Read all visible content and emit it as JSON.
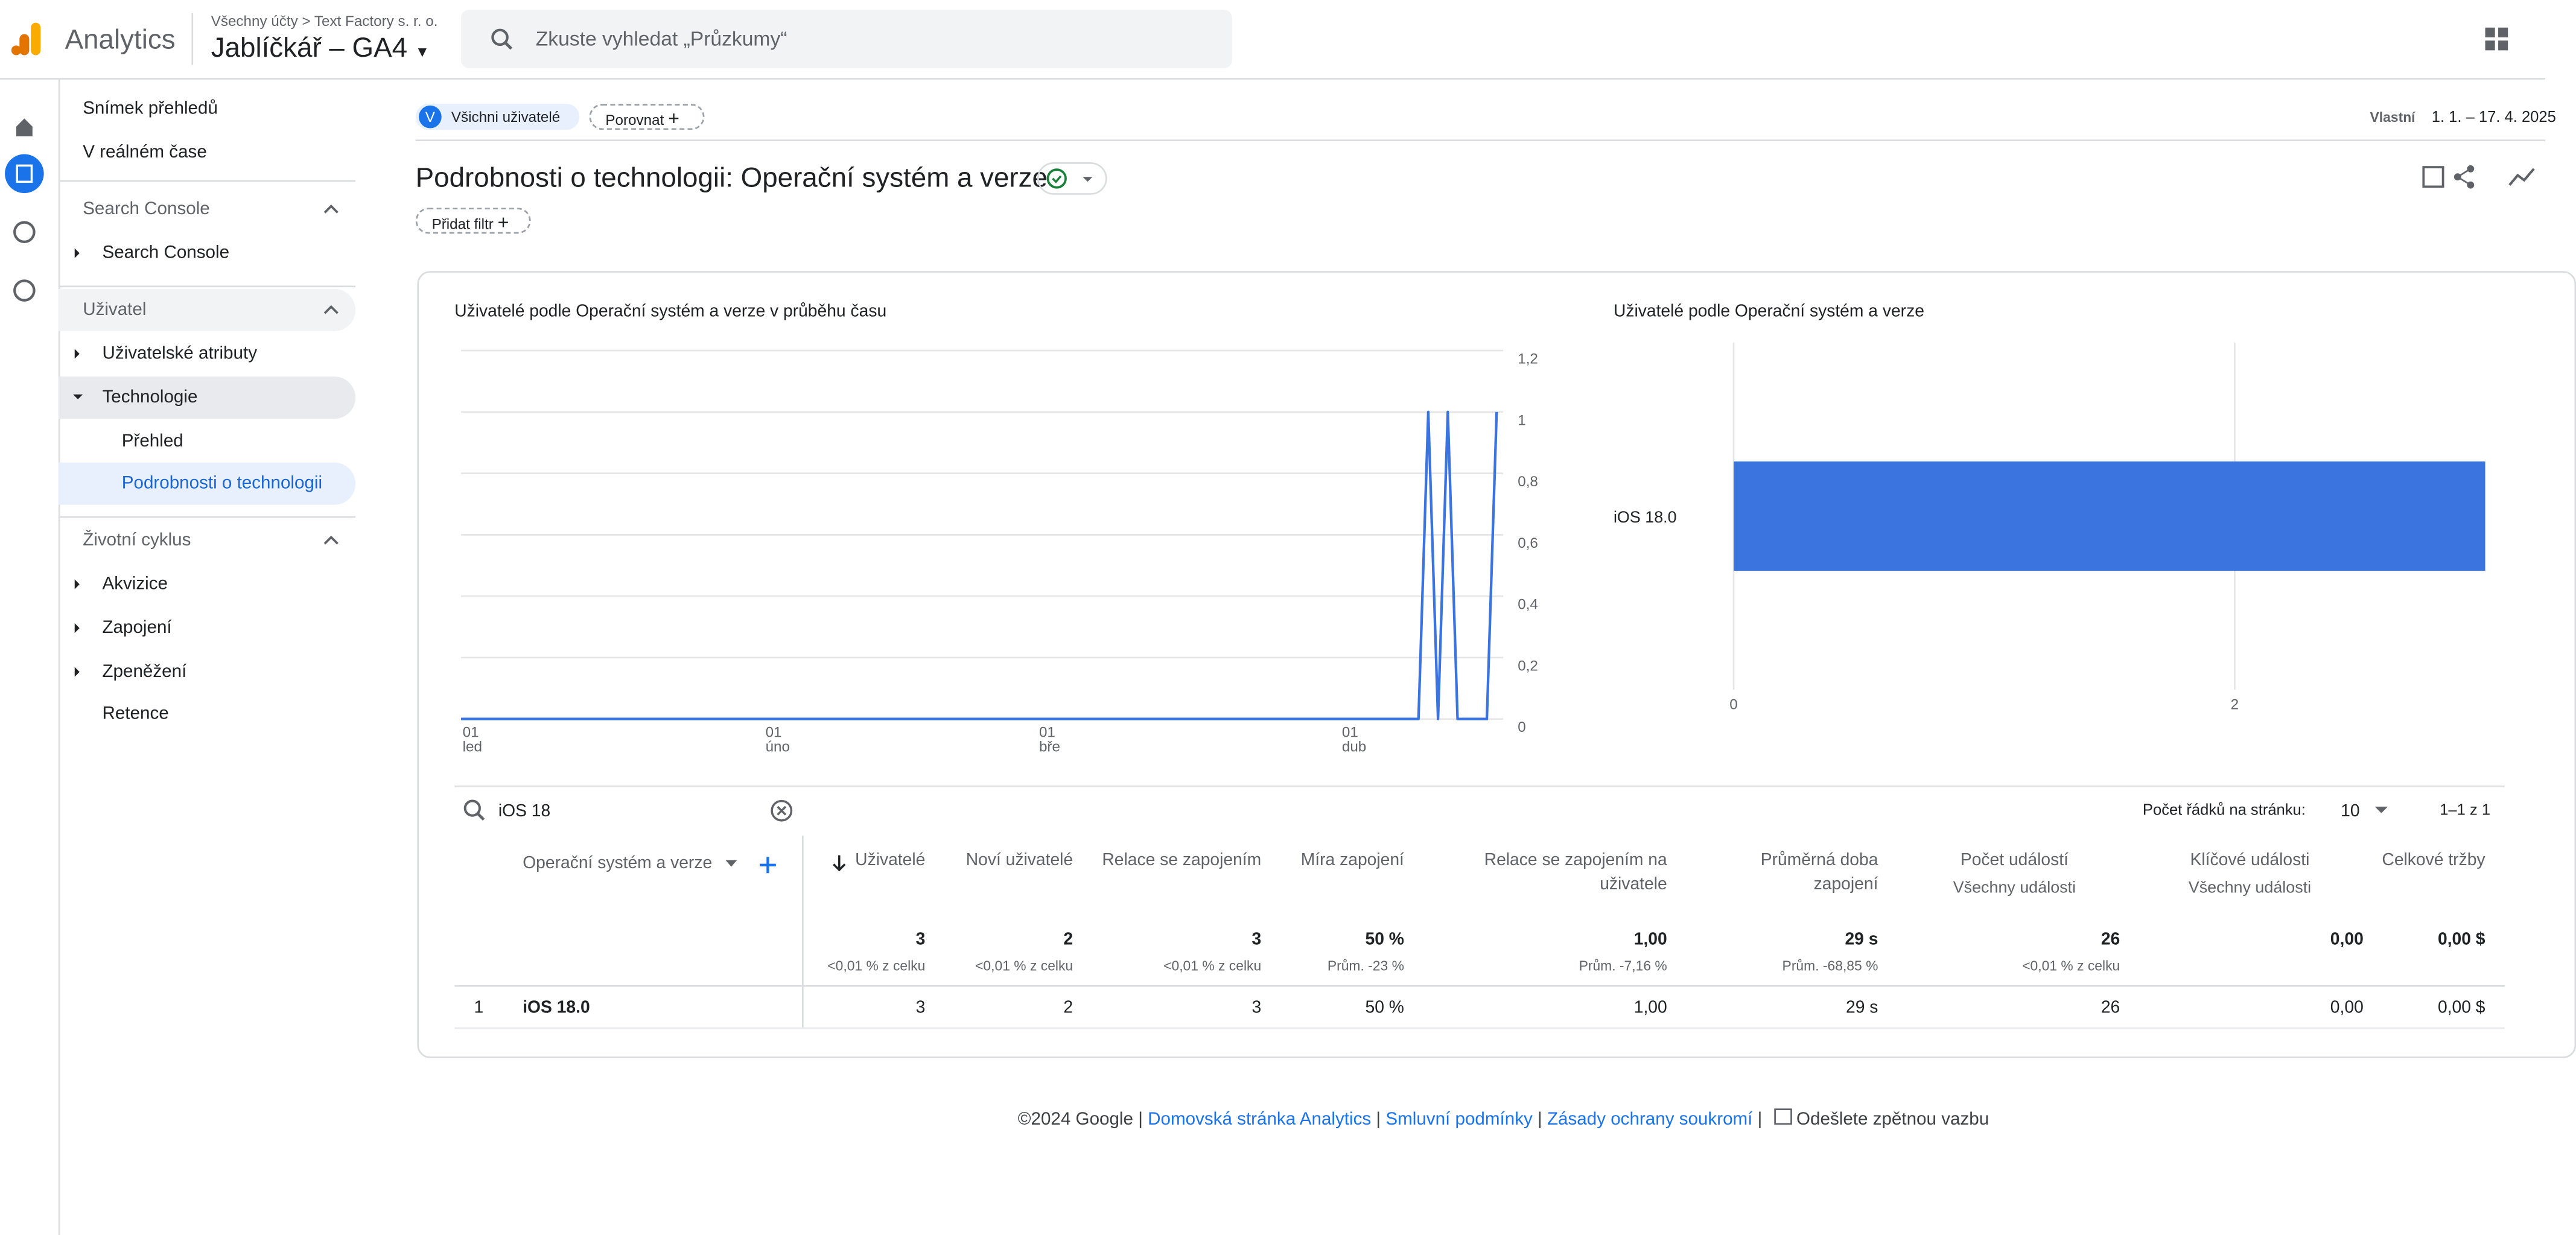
{
  "header": {
    "product": "Analytics",
    "breadcrumb_root": "Všechny účty",
    "breadcrumb_account": "Text Factory s. r. o.",
    "property": "Jablíčkář – GA4",
    "search_placeholder": "Zkuste vyhledat „Průzkumy“"
  },
  "sidebar": {
    "items": [
      "Snímek přehledů",
      "V reálném čase",
      "Search Console",
      "Search Console",
      "Uživatel",
      "Uživatelské atributy",
      "Technologie",
      "Přehled",
      "Podrobnosti o technologii",
      "Životní cyklus",
      "Akvizice",
      "Zapojení",
      "Zpeněžení",
      "Retence"
    ]
  },
  "filters": {
    "segment_initial": "V",
    "segment": "Všichni uživatelé",
    "compare": "Porovnat",
    "date_label": "Vlastní",
    "date_range": "1. 1. – 17. 4. 2025"
  },
  "report": {
    "title": "Podrobnosti o technologii: Operační systém a verze",
    "add_filter": "Přidat filtr"
  },
  "chart_data": [
    {
      "type": "line",
      "title": "Uživatelé podle Operační systém a verze v průběhu času",
      "categories": [
        "01 led",
        null,
        null,
        null,
        null,
        null,
        null,
        null,
        null,
        null,
        null,
        null,
        null,
        null,
        null,
        null,
        null,
        null,
        null,
        null,
        null,
        null,
        null,
        null,
        null,
        null,
        null,
        null,
        null,
        null,
        null,
        "01 úno",
        null,
        null,
        null,
        null,
        null,
        null,
        null,
        null,
        null,
        null,
        null,
        null,
        null,
        null,
        null,
        null,
        null,
        null,
        null,
        null,
        null,
        null,
        null,
        null,
        null,
        null,
        null,
        "01 bře",
        null,
        null,
        null,
        null,
        null,
        null,
        null,
        null,
        null,
        null,
        null,
        null,
        null,
        null,
        null,
        null,
        null,
        null,
        null,
        null,
        null,
        null,
        null,
        null,
        null,
        null,
        null,
        null,
        null,
        null,
        "01 dub",
        null,
        null,
        null,
        null,
        null,
        null,
        null,
        null,
        null,
        null,
        null,
        null,
        null,
        null,
        null,
        null
      ],
      "values": [
        0,
        0,
        0,
        0,
        0,
        0,
        0,
        0,
        0,
        0,
        0,
        0,
        0,
        0,
        0,
        0,
        0,
        0,
        0,
        0,
        0,
        0,
        0,
        0,
        0,
        0,
        0,
        0,
        0,
        0,
        0,
        0,
        0,
        0,
        0,
        0,
        0,
        0,
        0,
        0,
        0,
        0,
        0,
        0,
        0,
        0,
        0,
        0,
        0,
        0,
        0,
        0,
        0,
        0,
        0,
        0,
        0,
        0,
        0,
        0,
        0,
        0,
        0,
        0,
        0,
        0,
        0,
        0,
        0,
        0,
        0,
        0,
        0,
        0,
        0,
        0,
        0,
        0,
        0,
        0,
        0,
        0,
        0,
        0,
        0,
        0,
        0,
        0,
        0,
        0,
        0,
        0,
        0,
        0,
        0,
        0,
        0,
        0,
        0,
        1,
        0,
        1,
        0,
        0,
        0,
        0,
        1
      ],
      "color": "#3b74de",
      "ylim": [
        0,
        1.2
      ],
      "yticks": [
        0,
        {
          "value": 0.2,
          "label": "0,2"
        },
        {
          "value": 0.4,
          "label": "0,4"
        },
        {
          "value": 0.6,
          "label": "0,6"
        },
        {
          "value": 0.8,
          "label": "0,8"
        },
        1,
        {
          "value": 1.2,
          "label": "1,2"
        }
      ],
      "grid": true
    },
    {
      "type": "bar",
      "orientation": "horizontal",
      "title": "Uživatelé podle Operační systém a verze",
      "categories": [
        "iOS 18.0"
      ],
      "values": [
        3
      ],
      "color": "#3b74de",
      "xlim": [
        0,
        3
      ],
      "xticks": [
        0,
        2
      ],
      "grid": true
    }
  ],
  "table": {
    "search": "iOS 18",
    "rows_per_page_label": "Počet řádků na stránku:",
    "rows_per_page": "10",
    "pagination": "1–1 z 1",
    "dimension": "Operační systém a verze",
    "columns": [
      {
        "label": "Uživatelé"
      },
      {
        "label": "Noví uživatelé"
      },
      {
        "label": "Relace se zapojením"
      },
      {
        "label": "Míra zapojení"
      },
      {
        "label": "Relace se zapojením na uživatele"
      },
      {
        "label": "Průměrná doba zapojení"
      },
      {
        "label": "Počet událostí",
        "filter": "Všechny události"
      },
      {
        "label": "Klíčové události",
        "filter": "Všechny události"
      },
      {
        "label": "Celkové tržby"
      }
    ],
    "totals": [
      "3",
      "2",
      "3",
      "50 %",
      "1,00",
      "29 s",
      "26",
      "0,00",
      "0,00 $"
    ],
    "totals_notes": [
      "<0,01 % z celku",
      "<0,01 % z celku",
      "<0,01 % z celku",
      "Prům. -23 %",
      "Prům. -7,16 %",
      "Prům. -68,85 %",
      "<0,01 % z celku",
      null,
      null
    ],
    "rows": [
      [
        "1",
        "iOS 18.0",
        "3",
        "2",
        "3",
        "50 %",
        "1,00",
        "29 s",
        "26",
        "0,00",
        "0,00 $"
      ]
    ]
  },
  "footer": {
    "copyright": "©2024 Google",
    "links": [
      "Domovská stránka Analytics",
      "Smluvní podmínky",
      "Zásady ochrany soukromí"
    ],
    "feedback": "Odešlete zpětnou vazbu"
  }
}
